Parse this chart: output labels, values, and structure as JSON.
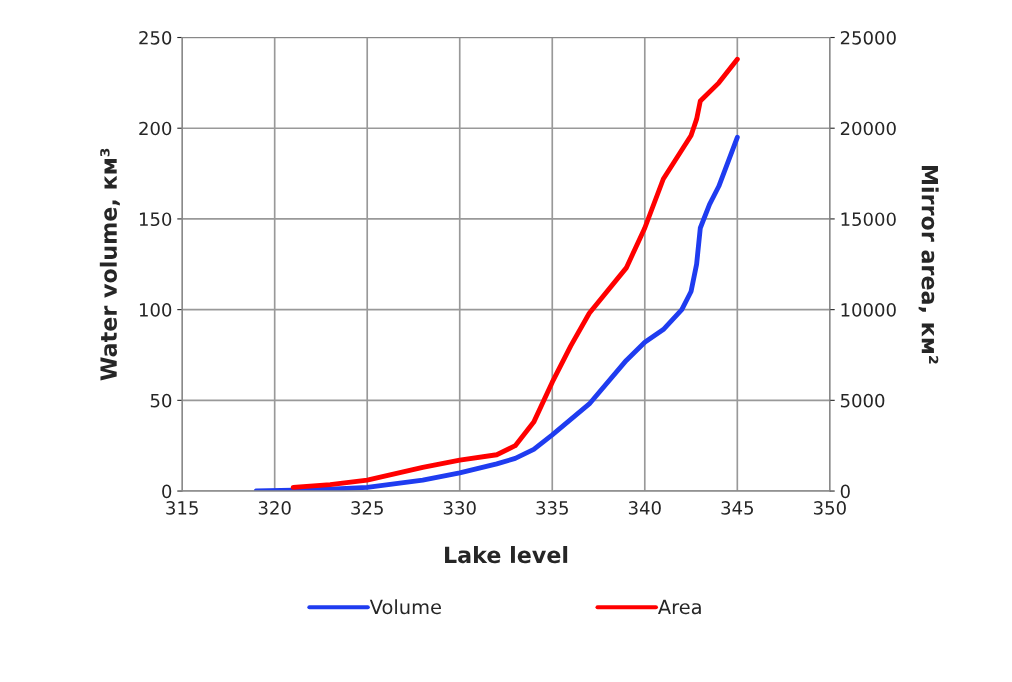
{
  "chart_data": {
    "type": "line",
    "xlabel": "Lake level",
    "ylabel": "Water volume, км³",
    "y2label": "Mirror area, км²",
    "xlim": [
      315,
      350
    ],
    "xticks": [
      315,
      320,
      325,
      330,
      335,
      340,
      345,
      350
    ],
    "ylim": [
      0,
      250
    ],
    "yticks": [
      0,
      50,
      100,
      150,
      200,
      250
    ],
    "y2lim": [
      0,
      25000
    ],
    "y2ticks": [
      0,
      5000,
      10000,
      15000,
      20000,
      25000
    ],
    "grid": true,
    "legend": "bottom",
    "marker": "none",
    "line_style": "solid",
    "series": [
      {
        "name": "Volume",
        "color": "#1f3cf0",
        "x": [
          319,
          321,
          323,
          325,
          328,
          330,
          332,
          333,
          334,
          335,
          337,
          339,
          340,
          341,
          342,
          342.5,
          342.8,
          343,
          343.5,
          344,
          345
        ],
        "values": [
          0,
          0.5,
          1,
          2,
          6,
          10,
          15,
          18,
          23,
          31,
          48,
          72,
          82,
          89,
          100,
          110,
          125,
          145,
          158,
          168,
          195
        ]
      },
      {
        "name": "Area",
        "color": "#ff0000",
        "axis": "y2",
        "x": [
          321,
          323,
          325,
          328,
          330,
          332,
          333,
          334,
          335,
          336,
          337,
          339,
          340,
          341,
          342,
          342.5,
          342.8,
          343,
          344,
          345
        ],
        "values": [
          200,
          350,
          600,
          1300,
          1700,
          2000,
          2500,
          3800,
          6000,
          8000,
          9800,
          12300,
          14500,
          17200,
          18800,
          19600,
          20500,
          21500,
          22500,
          23800
        ]
      }
    ]
  }
}
